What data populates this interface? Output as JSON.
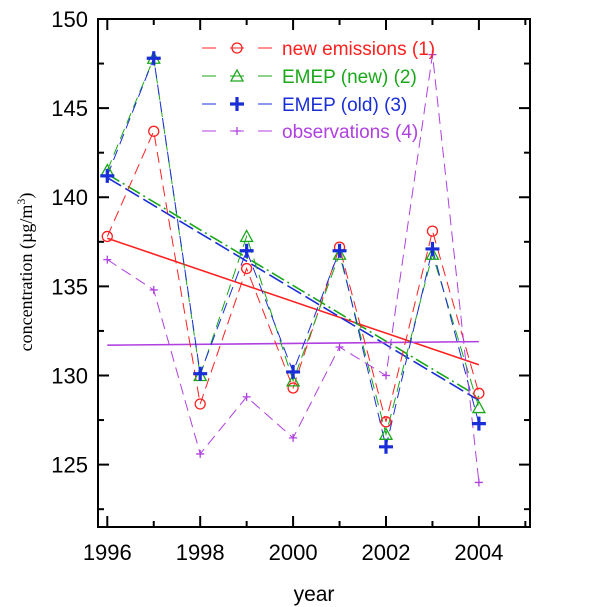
{
  "chart_data": {
    "type": "line",
    "title": "",
    "xlabel": "year",
    "ylabel": "concentration (µg/m³)",
    "ylabel_parts": {
      "main": "concentration (µg/m",
      "sup": "3",
      "close": ")"
    },
    "xlim": [
      1995.8,
      2005.1
    ],
    "ylim": [
      121.5,
      150
    ],
    "xticks": [
      1996,
      1998,
      2000,
      2002,
      2004
    ],
    "yticks": [
      125,
      130,
      135,
      140,
      145,
      150
    ],
    "x": [
      1996,
      1997,
      1998,
      1999,
      2000,
      2001,
      2002,
      2003,
      2004
    ],
    "grid": false,
    "legend_position": "top",
    "series": [
      {
        "name": "new emissions (1)",
        "color": "#ff2020",
        "marker": "circle",
        "values": [
          137.8,
          143.7,
          128.4,
          136.0,
          129.3,
          137.2,
          127.4,
          138.1,
          129.0
        ],
        "trend": [
          137.7,
          130.6
        ]
      },
      {
        "name": "EMEP (new) (2)",
        "color": "#1aa81a",
        "marker": "triangle",
        "values": [
          141.5,
          147.8,
          130.0,
          137.8,
          129.7,
          136.8,
          126.7,
          136.8,
          128.2
        ],
        "trend": [
          141.3,
          128.8
        ]
      },
      {
        "name": "EMEP (old) (3)",
        "color": "#1a2ed8",
        "marker": "plus-bold",
        "values": [
          141.2,
          147.8,
          130.1,
          137.0,
          130.2,
          137.0,
          126.0,
          137.1,
          127.3
        ],
        "trend": [
          141.1,
          128.6
        ]
      },
      {
        "name": "observations (4)",
        "color": "#b040e0",
        "marker": "plus",
        "values": [
          136.5,
          134.8,
          125.6,
          128.8,
          126.5,
          131.6,
          130.0,
          148.0,
          124.0
        ],
        "trend": [
          131.7,
          131.9
        ]
      }
    ]
  }
}
